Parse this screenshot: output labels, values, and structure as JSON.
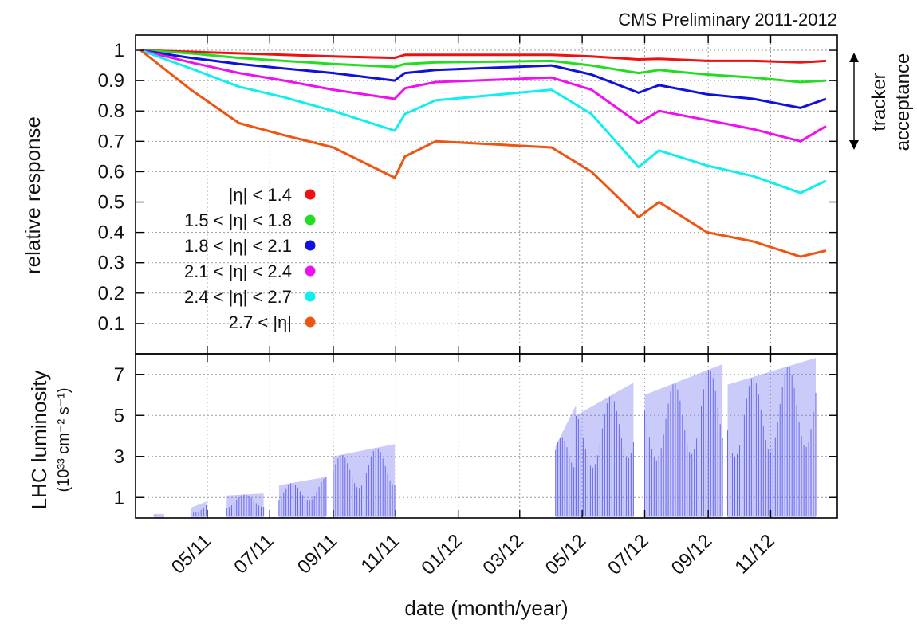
{
  "header": "CMS Preliminary 2011-2012",
  "side_annotation": [
    "tracker",
    "acceptance"
  ],
  "chart_data": [
    {
      "type": "line",
      "ylabel": "relative response",
      "xlabel": "date (month/year)",
      "ylim": [
        0,
        1.05
      ],
      "yticks": [
        0.1,
        0.2,
        0.3,
        0.4,
        0.5,
        0.6,
        0.7,
        0.8,
        0.9,
        1
      ],
      "yticklabels": [
        "0.1",
        "0.2",
        "0.3",
        "0.4",
        "0.5",
        "0.6",
        "0.7",
        "0.8",
        "0.9",
        "1"
      ],
      "x_axis_type": "date",
      "x_range": [
        "2011-02-20",
        "2013-01-05"
      ],
      "xticks": [
        "2011-05-01",
        "2011-07-01",
        "2011-09-01",
        "2011-11-01",
        "2012-01-01",
        "2012-03-01",
        "2012-05-01",
        "2012-07-01",
        "2012-09-01",
        "2012-11-01"
      ],
      "xticklabels": [
        "05/11",
        "07/11",
        "09/11",
        "11/11",
        "01/12",
        "03/12",
        "05/12",
        "07/12",
        "09/12",
        "11/12"
      ],
      "grid": true,
      "legend_position": "lower-left",
      "series": [
        {
          "name": "|η| < 1.4",
          "color": "#ee1111",
          "x": [
            "2011-02-25",
            "2011-04-15",
            "2011-06-01",
            "2011-07-15",
            "2011-09-01",
            "2011-10-31",
            "2011-11-10",
            "2011-12-10",
            "2012-04-01",
            "2012-05-10",
            "2012-06-25",
            "2012-07-15",
            "2012-08-31",
            "2012-10-15",
            "2012-11-30",
            "2012-12-25"
          ],
          "y": [
            1.0,
            0.995,
            0.99,
            0.985,
            0.98,
            0.975,
            0.985,
            0.985,
            0.985,
            0.98,
            0.97,
            0.972,
            0.965,
            0.965,
            0.96,
            0.965
          ]
        },
        {
          "name": "1.5 < |η| < 1.8",
          "color": "#22dd22",
          "x": [
            "2011-02-25",
            "2011-04-15",
            "2011-06-01",
            "2011-07-15",
            "2011-09-01",
            "2011-10-31",
            "2011-11-10",
            "2011-12-10",
            "2012-04-01",
            "2012-05-10",
            "2012-06-25",
            "2012-07-15",
            "2012-08-31",
            "2012-10-15",
            "2012-11-30",
            "2012-12-25"
          ],
          "y": [
            1.0,
            0.99,
            0.975,
            0.965,
            0.955,
            0.945,
            0.955,
            0.96,
            0.965,
            0.95,
            0.925,
            0.935,
            0.92,
            0.91,
            0.895,
            0.9
          ]
        },
        {
          "name": "1.8 < |η| < 2.1",
          "color": "#1111dd",
          "x": [
            "2011-02-25",
            "2011-04-15",
            "2011-06-01",
            "2011-07-15",
            "2011-09-01",
            "2011-10-31",
            "2011-11-10",
            "2011-12-10",
            "2012-04-01",
            "2012-05-10",
            "2012-06-25",
            "2012-07-15",
            "2012-08-31",
            "2012-10-15",
            "2012-11-30",
            "2012-12-25"
          ],
          "y": [
            1.0,
            0.975,
            0.955,
            0.94,
            0.925,
            0.9,
            0.925,
            0.935,
            0.95,
            0.92,
            0.86,
            0.885,
            0.855,
            0.84,
            0.81,
            0.84
          ]
        },
        {
          "name": "2.1 < |η| < 2.4",
          "color": "#ee11ee",
          "x": [
            "2011-02-25",
            "2011-04-15",
            "2011-06-01",
            "2011-07-15",
            "2011-09-01",
            "2011-10-31",
            "2011-11-10",
            "2011-12-10",
            "2012-04-01",
            "2012-05-10",
            "2012-06-25",
            "2012-07-15",
            "2012-08-31",
            "2012-10-15",
            "2012-11-30",
            "2012-12-25"
          ],
          "y": [
            1.0,
            0.96,
            0.925,
            0.9,
            0.87,
            0.84,
            0.875,
            0.895,
            0.91,
            0.87,
            0.76,
            0.8,
            0.77,
            0.74,
            0.7,
            0.75
          ]
        },
        {
          "name": "2.4 < |η| < 2.7",
          "color": "#11eeee",
          "x": [
            "2011-02-25",
            "2011-04-15",
            "2011-06-01",
            "2011-07-15",
            "2011-09-01",
            "2011-10-31",
            "2011-11-10",
            "2011-12-10",
            "2012-04-01",
            "2012-05-10",
            "2012-06-25",
            "2012-07-15",
            "2012-08-31",
            "2012-10-15",
            "2012-11-30",
            "2012-12-25"
          ],
          "y": [
            1.0,
            0.94,
            0.88,
            0.845,
            0.8,
            0.735,
            0.79,
            0.835,
            0.87,
            0.79,
            0.615,
            0.67,
            0.62,
            0.585,
            0.53,
            0.57
          ]
        },
        {
          "name": "2.7 < |η|",
          "color": "#ee5511",
          "x": [
            "2011-02-25",
            "2011-04-15",
            "2011-06-01",
            "2011-07-15",
            "2011-09-01",
            "2011-10-31",
            "2011-11-10",
            "2011-12-10",
            "2012-04-01",
            "2012-05-10",
            "2012-06-25",
            "2012-07-15",
            "2012-08-31",
            "2012-10-15",
            "2012-11-30",
            "2012-12-25"
          ],
          "y": [
            1.0,
            0.87,
            0.76,
            0.72,
            0.68,
            0.58,
            0.65,
            0.7,
            0.68,
            0.6,
            0.45,
            0.5,
            0.4,
            0.37,
            0.32,
            0.34
          ]
        }
      ]
    },
    {
      "type": "bar",
      "ylabel": "LHC luminosity",
      "ylabel_units": "(10³³ cm⁻² s⁻¹)",
      "xlabel": "date (month/year)",
      "ylim": [
        0,
        8
      ],
      "yticks": [
        1,
        3,
        5,
        7
      ],
      "yticklabels": [
        "1",
        "3",
        "5",
        "7"
      ],
      "x_axis_type": "date",
      "x_range": [
        "2011-02-20",
        "2013-01-05"
      ],
      "grid": true,
      "color": "#6a6af0",
      "periods": [
        {
          "x": [
            "2011-03-10",
            "2011-03-20"
          ],
          "y": [
            0.2,
            0.2
          ]
        },
        {
          "x": [
            "2011-04-15",
            "2011-04-30"
          ],
          "y": [
            0.5,
            0.8
          ]
        },
        {
          "x": [
            "2011-05-20",
            "2011-06-25"
          ],
          "y": [
            1.1,
            1.2
          ]
        },
        {
          "x": [
            "2011-07-10",
            "2011-08-25"
          ],
          "y": [
            1.6,
            2.0
          ]
        },
        {
          "x": [
            "2011-09-01",
            "2011-10-31"
          ],
          "y": [
            3.0,
            3.6
          ]
        },
        {
          "x": [
            "2012-04-05",
            "2012-04-25"
          ],
          "y": [
            3.5,
            5.5
          ]
        },
        {
          "x": [
            "2012-04-25",
            "2012-06-20"
          ],
          "y": [
            5.0,
            6.6
          ]
        },
        {
          "x": [
            "2012-07-01",
            "2012-09-15"
          ],
          "y": [
            6.0,
            7.5
          ]
        },
        {
          "x": [
            "2012-09-20",
            "2012-12-15"
          ],
          "y": [
            6.5,
            7.8
          ]
        }
      ]
    }
  ]
}
